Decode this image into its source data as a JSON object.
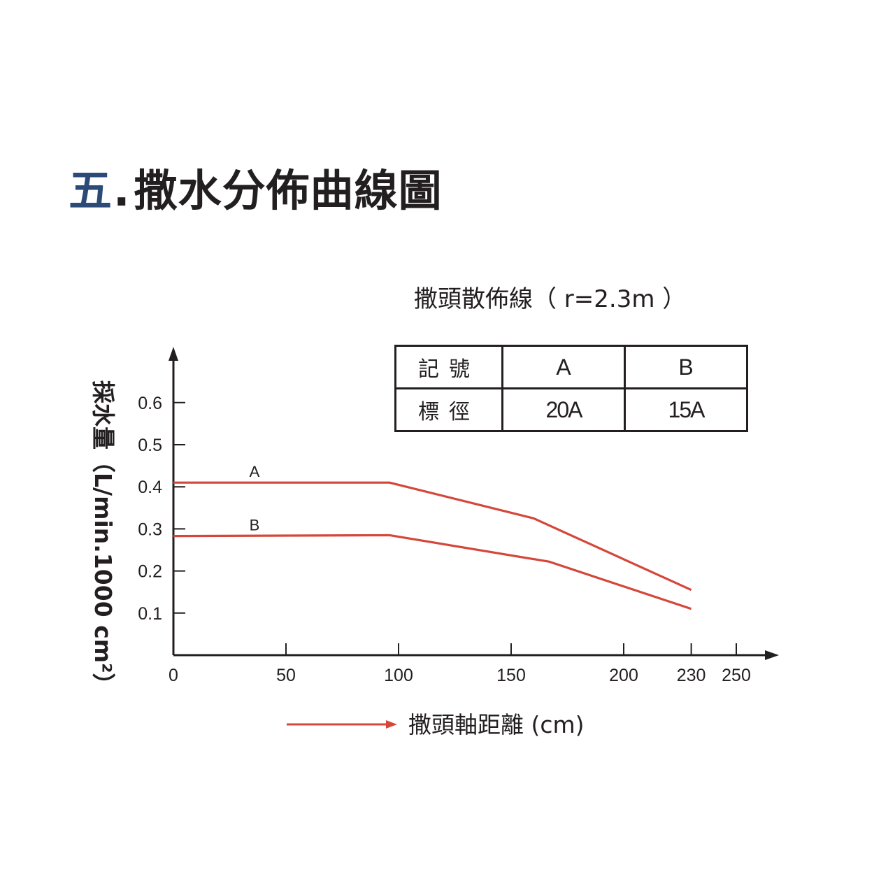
{
  "heading": {
    "number": "五",
    "separator": ".",
    "text": "撒水分佈曲線圖"
  },
  "colors": {
    "series": "#d4473a",
    "axis": "#231f20",
    "heading_number": "#2b4a78"
  },
  "legend_table": {
    "rows": [
      {
        "label": "記號",
        "a": "A",
        "b": "B"
      },
      {
        "label": "標徑",
        "a": "20A",
        "b": "15A"
      }
    ]
  },
  "chart_data": {
    "type": "line",
    "title": "撒頭散佈線（ r=2.3m ）",
    "xlabel": "撒頭軸距離 (cm)",
    "ylabel": "採水量（L/min.1000 cm²）",
    "xlim": [
      0,
      250
    ],
    "ylim": [
      0,
      0.6
    ],
    "x_ticks": [
      0,
      50,
      100,
      150,
      200,
      230,
      250
    ],
    "x_tick_labels": [
      "0",
      "50",
      "100",
      "150",
      "200",
      "230",
      "250"
    ],
    "y_ticks": [
      0.1,
      0.2,
      0.3,
      0.4,
      0.5,
      0.6
    ],
    "y_tick_labels": [
      "0.1",
      "0.2",
      "0.3",
      "0.4",
      "0.5",
      "0.6"
    ],
    "grid": false,
    "series": [
      {
        "name": "A",
        "x": [
          0,
          96,
          160,
          230
        ],
        "values": [
          0.41,
          0.41,
          0.325,
          0.155
        ]
      },
      {
        "name": "B",
        "x": [
          0,
          96,
          167,
          230
        ],
        "values": [
          0.283,
          0.285,
          0.222,
          0.11
        ]
      }
    ]
  }
}
